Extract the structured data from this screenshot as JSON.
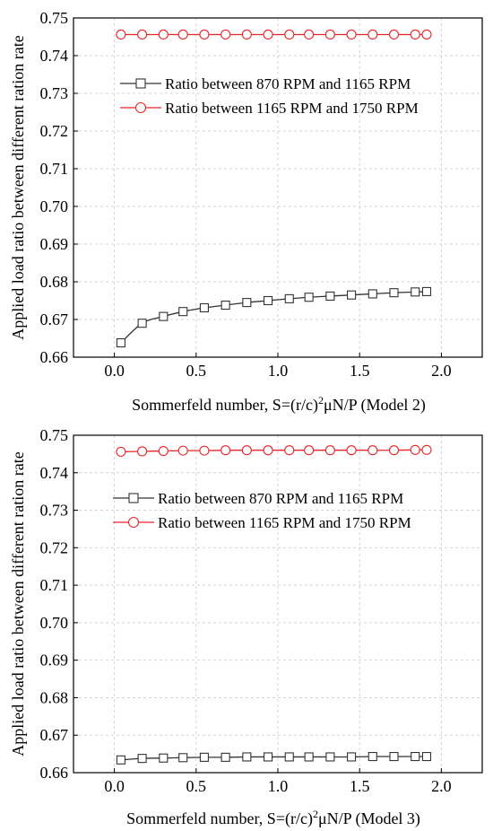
{
  "chart_data": [
    {
      "type": "line",
      "xlabel_main": "Sommerfeld number, S=(r/c)",
      "xlabel_sup": "2",
      "xlabel_tail": "μN/P (Model 2)",
      "ylabel": "Applied load ratio between different ration rate",
      "xlim": [
        -0.25,
        2.25
      ],
      "ylim": [
        0.66,
        0.75
      ],
      "xticks": [
        0.0,
        0.5,
        1.0,
        1.5,
        2.0
      ],
      "xtick_labels": [
        "0.0",
        "0.5",
        "1.0",
        "1.5",
        "2.0"
      ],
      "yticks": [
        0.66,
        0.67,
        0.68,
        0.69,
        0.7,
        0.71,
        0.72,
        0.73,
        0.74,
        0.75
      ],
      "ytick_labels": [
        "0.66",
        "0.67",
        "0.68",
        "0.69",
        "0.70",
        "0.71",
        "0.72",
        "0.73",
        "0.74",
        "0.75"
      ],
      "grid": true,
      "legend_position": "upper-right",
      "series": [
        {
          "name": "Ratio between 870 RPM and 1165 RPM",
          "marker": "square",
          "color": "#333333",
          "x": [
            0.04,
            0.17,
            0.3,
            0.42,
            0.55,
            0.68,
            0.81,
            0.94,
            1.07,
            1.19,
            1.32,
            1.45,
            1.58,
            1.71,
            1.84,
            1.91
          ],
          "y": [
            0.6638,
            0.669,
            0.6708,
            0.6721,
            0.6731,
            0.6738,
            0.6745,
            0.675,
            0.6755,
            0.6759,
            0.6762,
            0.6765,
            0.6768,
            0.6771,
            0.6773,
            0.6774
          ]
        },
        {
          "name": "Ratio between 1165 RPM and 1750 RPM",
          "marker": "circle",
          "color": "#e8262a",
          "x": [
            0.04,
            0.17,
            0.3,
            0.42,
            0.55,
            0.68,
            0.81,
            0.94,
            1.07,
            1.19,
            1.32,
            1.45,
            1.58,
            1.71,
            1.84,
            1.91
          ],
          "y": [
            0.7456,
            0.7456,
            0.7456,
            0.7456,
            0.7456,
            0.7456,
            0.7456,
            0.7456,
            0.7456,
            0.7456,
            0.7456,
            0.7456,
            0.7456,
            0.7456,
            0.7456,
            0.7456
          ]
        }
      ]
    },
    {
      "type": "line",
      "xlabel_main": "Sommerfeld number, S=(r/c)",
      "xlabel_sup": "2",
      "xlabel_tail": "μN/P (Model 3)",
      "ylabel": "Applied load ratio between different ration rate",
      "xlim": [
        -0.25,
        2.25
      ],
      "ylim": [
        0.66,
        0.75
      ],
      "xticks": [
        0.0,
        0.5,
        1.0,
        1.5,
        2.0
      ],
      "xtick_labels": [
        "0.0",
        "0.5",
        "1.0",
        "1.5",
        "2.0"
      ],
      "yticks": [
        0.66,
        0.67,
        0.68,
        0.69,
        0.7,
        0.71,
        0.72,
        0.73,
        0.74,
        0.75
      ],
      "ytick_labels": [
        "0.66",
        "0.67",
        "0.68",
        "0.69",
        "0.70",
        "0.71",
        "0.72",
        "0.73",
        "0.74",
        "0.75"
      ],
      "grid": true,
      "legend_position": "upper-right",
      "series": [
        {
          "name": "Ratio between 870 RPM and 1165 RPM",
          "marker": "square",
          "color": "#333333",
          "x": [
            0.04,
            0.17,
            0.3,
            0.42,
            0.55,
            0.68,
            0.81,
            0.94,
            1.07,
            1.19,
            1.32,
            1.45,
            1.58,
            1.71,
            1.84,
            1.91
          ],
          "y": [
            0.6634,
            0.6638,
            0.6639,
            0.664,
            0.6641,
            0.6641,
            0.6642,
            0.6642,
            0.6642,
            0.6642,
            0.6642,
            0.6642,
            0.6643,
            0.6643,
            0.6643,
            0.6643
          ]
        },
        {
          "name": "Ratio between 1165 RPM and 1750 RPM",
          "marker": "circle",
          "color": "#e8262a",
          "x": [
            0.04,
            0.17,
            0.3,
            0.42,
            0.55,
            0.68,
            0.81,
            0.94,
            1.07,
            1.19,
            1.32,
            1.45,
            1.58,
            1.71,
            1.84,
            1.91
          ],
          "y": [
            0.7456,
            0.7457,
            0.7458,
            0.7459,
            0.7459,
            0.746,
            0.746,
            0.746,
            0.746,
            0.746,
            0.746,
            0.746,
            0.746,
            0.746,
            0.7461,
            0.7461
          ]
        }
      ]
    }
  ]
}
